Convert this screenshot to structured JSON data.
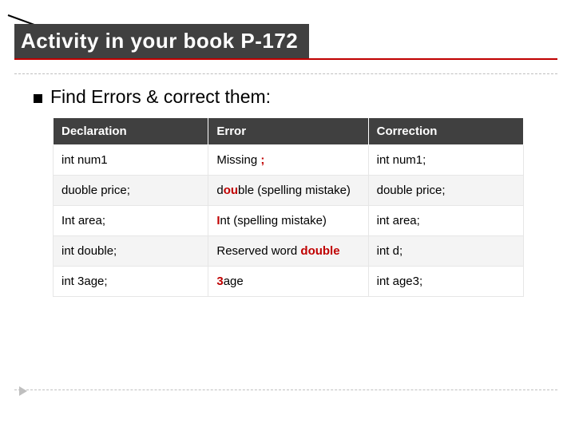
{
  "title": "Activity in your book P-172",
  "subtitle": "Find Errors & correct them:",
  "colors": {
    "title_bg": "#404040",
    "title_fg": "#ffffff",
    "underline": "#c00000",
    "dash": "#bfbfbf",
    "header_bg": "#404040",
    "header_fg": "#ffffff",
    "row_even_bg": "#f4f4f4",
    "row_odd_bg": "#ffffff",
    "cell_border": "#e6e6e6",
    "highlight": "#c00000",
    "text": "#000000",
    "arrow": "#bfbfbf"
  },
  "table": {
    "columns": [
      "Declaration",
      "Error",
      "Correction"
    ],
    "column_widths_pct": [
      33,
      34,
      33
    ],
    "header_fontsize": 15,
    "cell_fontsize": 15,
    "rows": [
      {
        "declaration": [
          {
            "t": "int num1"
          }
        ],
        "error": [
          {
            "t": "Missing "
          },
          {
            "t": ";",
            "hl": true
          }
        ],
        "correction": [
          {
            "t": "int num1;"
          }
        ]
      },
      {
        "declaration": [
          {
            "t": "duoble price;"
          }
        ],
        "error": [
          {
            "t": "d"
          },
          {
            "t": "ou",
            "hl": true
          },
          {
            "t": "ble (spelling mistake)"
          }
        ],
        "correction": [
          {
            "t": "double price;"
          }
        ]
      },
      {
        "declaration": [
          {
            "t": "Int area;"
          }
        ],
        "error": [
          {
            "t": "I",
            "hl": true
          },
          {
            "t": "nt (spelling mistake)"
          }
        ],
        "correction": [
          {
            "t": "int area;"
          }
        ]
      },
      {
        "declaration": [
          {
            "t": "int double;"
          }
        ],
        "error": [
          {
            "t": "Reserved word "
          },
          {
            "t": "double",
            "hl": true
          }
        ],
        "correction": [
          {
            "t": "int d;"
          }
        ]
      },
      {
        "declaration": [
          {
            "t": "int 3age;"
          }
        ],
        "error": [
          {
            "t": "3",
            "hl": true
          },
          {
            "t": "age"
          }
        ],
        "correction": [
          {
            "t": "int age3;"
          }
        ]
      }
    ]
  }
}
